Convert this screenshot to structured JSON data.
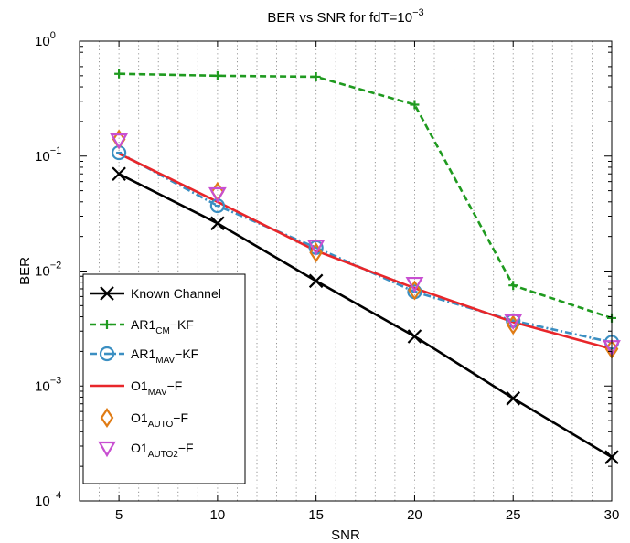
{
  "chart_data": {
    "type": "line",
    "title": {
      "main": "BER vs SNR for fdT=10",
      "exponent": "−3"
    },
    "xlabel": "SNR",
    "ylabel": "BER",
    "x": [
      5,
      10,
      15,
      20,
      25,
      30
    ],
    "xlim": [
      3,
      30
    ],
    "x_ticks": [
      5,
      10,
      15,
      20,
      25,
      30
    ],
    "ylim": [
      0.0001,
      1
    ],
    "yscale": "log",
    "y_ticks": [
      {
        "base": "10",
        "exp": "0",
        "value": 1
      },
      {
        "base": "10",
        "exp": "−1",
        "value": 0.1
      },
      {
        "base": "10",
        "exp": "−2",
        "value": 0.01
      },
      {
        "base": "10",
        "exp": "−3",
        "value": 0.001
      },
      {
        "base": "10",
        "exp": "−4",
        "value": 0.0001
      }
    ],
    "grid": "dotted vertical at integer SNR",
    "legend_position": "lower-left",
    "series": [
      {
        "name": "Known Channel",
        "label": {
          "base": "Known Channel",
          "sub": "",
          "suffix": ""
        },
        "color": "#000000",
        "line": "solid",
        "marker": "x",
        "values": [
          0.07,
          0.026,
          0.0082,
          0.0027,
          0.00078,
          0.00024
        ]
      },
      {
        "name": "AR1CM−KF",
        "label": {
          "base": "AR1",
          "sub": "CM",
          "suffix": "−KF"
        },
        "color": "#1f9a1f",
        "line": "dashed",
        "marker": "+",
        "values": [
          0.52,
          0.5,
          0.49,
          0.28,
          0.0075,
          0.0039
        ]
      },
      {
        "name": "AR1MAV−KF",
        "label": {
          "base": "AR1",
          "sub": "MAV",
          "suffix": "−KF"
        },
        "color": "#3b8fc2",
        "line": "dashdot",
        "marker": "o",
        "values": [
          0.107,
          0.037,
          0.016,
          0.0066,
          0.0037,
          0.0024
        ]
      },
      {
        "name": "O1MAV−F",
        "label": {
          "base": "O1",
          "sub": "MAV",
          "suffix": "−F"
        },
        "color": "#e8262a",
        "line": "solid",
        "marker": "none",
        "values": [
          0.105,
          0.04,
          0.015,
          0.0071,
          0.0036,
          0.0021
        ]
      },
      {
        "name": "O1AUTO−F",
        "label": {
          "base": "O1",
          "sub": "AUTO",
          "suffix": "−F"
        },
        "color": "#e07b14",
        "line": "none",
        "marker": "diamond",
        "values": [
          0.14,
          0.049,
          0.0145,
          0.0068,
          0.0034,
          0.0021
        ]
      },
      {
        "name": "O1AUTO2−F",
        "label": {
          "base": "O1",
          "sub": "AUTO2",
          "suffix": "−F"
        },
        "color": "#c84fd1",
        "line": "none",
        "marker": "triangle-down",
        "values": [
          0.138,
          0.047,
          0.0165,
          0.0078,
          0.0037,
          0.0022
        ]
      }
    ]
  }
}
